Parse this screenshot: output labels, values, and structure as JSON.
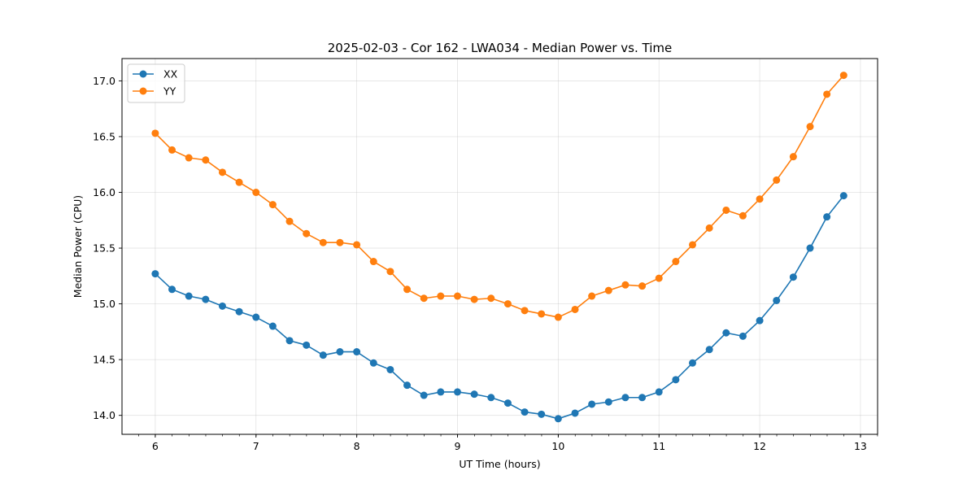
{
  "chart_data": {
    "type": "line",
    "title": "2025-02-03 - Cor 162 - LWA034 - Median Power vs. Time",
    "xlabel": "UT Time (hours)",
    "ylabel": "Median Power (CPU)",
    "xlim": [
      5.67,
      13.17
    ],
    "ylim": [
      13.83,
      17.2
    ],
    "xticks": [
      6,
      7,
      8,
      9,
      10,
      11,
      12,
      13
    ],
    "xtick_labels": [
      "6",
      "7",
      "8",
      "9",
      "10",
      "11",
      "12",
      "13"
    ],
    "yticks": [
      14.0,
      14.5,
      15.0,
      15.5,
      16.0,
      16.5,
      17.0
    ],
    "ytick_labels": [
      "14.0",
      "14.5",
      "15.0",
      "15.5",
      "16.0",
      "16.5",
      "17.0"
    ],
    "x_minor_step": 0.1667,
    "grid": true,
    "legend_position": "top-left",
    "x": [
      6.0,
      6.1667,
      6.3333,
      6.5,
      6.6667,
      6.8333,
      7.0,
      7.1667,
      7.3333,
      7.5,
      7.6667,
      7.8333,
      8.0,
      8.1667,
      8.3333,
      8.5,
      8.6667,
      8.8333,
      9.0,
      9.1667,
      9.3333,
      9.5,
      9.6667,
      9.8333,
      10.0,
      10.1667,
      10.3333,
      10.5,
      10.6667,
      10.8333,
      11.0,
      11.1667,
      11.3333,
      11.5,
      11.6667,
      11.8333,
      12.0,
      12.1667,
      12.3333,
      12.5,
      12.6667,
      12.8333
    ],
    "series": [
      {
        "name": "XX",
        "color": "#1f77b4",
        "values": [
          15.27,
          15.13,
          15.07,
          15.04,
          14.98,
          14.93,
          14.88,
          14.8,
          14.67,
          14.63,
          14.54,
          14.57,
          14.57,
          14.47,
          14.41,
          14.27,
          14.18,
          14.21,
          14.21,
          14.19,
          14.16,
          14.11,
          14.03,
          14.01,
          13.97,
          14.02,
          14.1,
          14.12,
          14.16,
          14.16,
          14.21,
          14.32,
          14.47,
          14.59,
          14.74,
          14.71,
          14.85,
          15.03,
          15.24,
          15.5,
          15.78,
          15.97
        ]
      },
      {
        "name": "YY",
        "color": "#ff7f0e",
        "values": [
          16.53,
          16.38,
          16.31,
          16.29,
          16.18,
          16.09,
          16.0,
          15.89,
          15.74,
          15.63,
          15.55,
          15.55,
          15.53,
          15.38,
          15.29,
          15.13,
          15.05,
          15.07,
          15.07,
          15.04,
          15.05,
          15.0,
          14.94,
          14.91,
          14.88,
          14.95,
          15.07,
          15.12,
          15.17,
          15.16,
          15.23,
          15.38,
          15.53,
          15.68,
          15.84,
          15.79,
          15.94,
          16.11,
          16.32,
          16.59,
          16.88,
          17.05
        ]
      }
    ]
  }
}
